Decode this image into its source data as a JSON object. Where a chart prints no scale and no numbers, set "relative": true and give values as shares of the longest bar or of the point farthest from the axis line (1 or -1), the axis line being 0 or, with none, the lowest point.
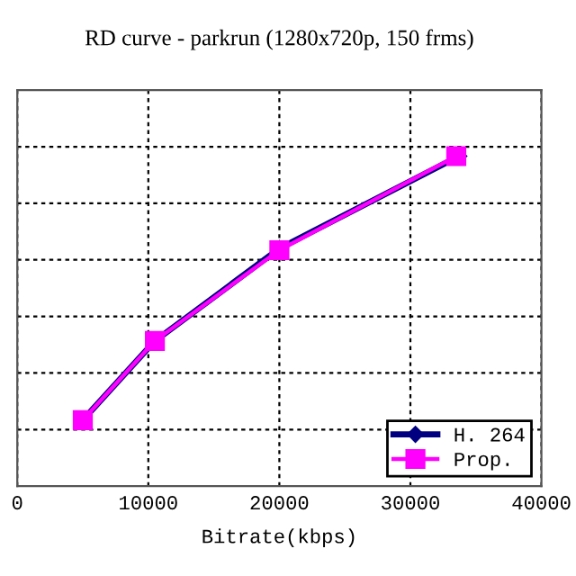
{
  "chart_data": {
    "type": "line",
    "title": "RD curve - parkrun (1280x720p, 150 frms)",
    "xlabel": "Bitrate(kbps)",
    "relative": true,
    "xlim": [
      0,
      40000
    ],
    "xticks": [
      0,
      10000,
      20000,
      30000,
      40000
    ],
    "grid": true,
    "legend": "bottom right",
    "line_style": "solid",
    "series": [
      {
        "name": "H. 264",
        "color": "#000080",
        "marker": "diamond",
        "x": [
          5000,
          10500,
          20000,
          33700
        ],
        "values": [
          0.2,
          0.44,
          0.72,
          1.0
        ]
      },
      {
        "name": "Prop.",
        "color": "#ff00ff",
        "marker": "square",
        "x": [
          5000,
          10500,
          20000,
          33500
        ],
        "values": [
          0.2,
          0.44,
          0.715,
          1.0
        ]
      }
    ]
  }
}
